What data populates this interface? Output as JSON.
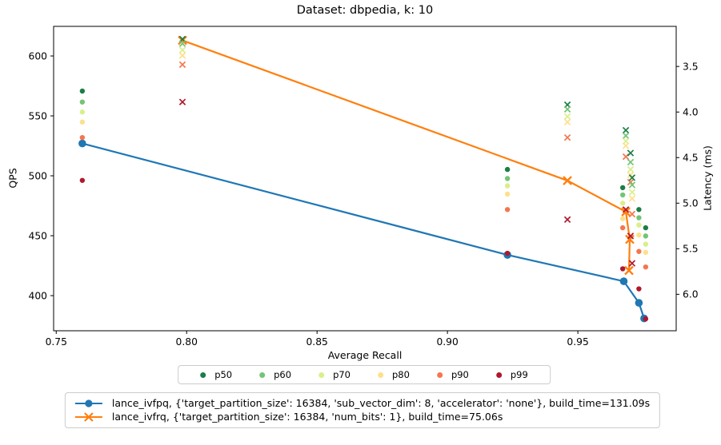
{
  "chart_data": {
    "type": "line+scatter",
    "title": "Dataset: dbpedia, k: 10",
    "xlabel": "Average Recall",
    "ylabel": "QPS",
    "ylabel_right": "Latency (ms)",
    "xlim": [
      0.749,
      0.9877
    ],
    "qps_lim": [
      370.7,
      624.7
    ],
    "lat_lim": [
      3.06,
      6.4
    ],
    "x_ticks": [
      0.75,
      0.8,
      0.85,
      0.9,
      0.95
    ],
    "qps_ticks": [
      400,
      450,
      500,
      550,
      600
    ],
    "lat_ticks": [
      3.5,
      4.0,
      4.5,
      5.0,
      5.5,
      6.0
    ],
    "grid": false,
    "legend_position": "below",
    "series": [
      {
        "name": "lance_ivfpq, {'target_partition_size': 16384, 'sub_vector_dim': 8, 'accelerator': 'none'}, build_time=131.09s",
        "color": "#1f77b4",
        "marker": "o",
        "points": [
          [
            0.76,
            527
          ],
          [
            0.923,
            434
          ],
          [
            0.9676,
            412
          ],
          [
            0.9734,
            394
          ],
          [
            0.9754,
            381
          ]
        ]
      },
      {
        "name": "lance_ivfrq, {'target_partition_size': 16384, 'num_bits': 1}, build_time=75.06s",
        "color": "#ff7f0e",
        "marker": "x",
        "points": [
          [
            0.7984,
            613
          ],
          [
            0.946,
            496
          ],
          [
            0.9684,
            470
          ],
          [
            0.9699,
            447
          ],
          [
            0.9696,
            421
          ]
        ]
      }
    ],
    "percentiles": {
      "labels": [
        "p50",
        "p60",
        "p70",
        "p80",
        "p90",
        "p99"
      ],
      "colors": [
        "#1b7e45",
        "#74c476",
        "#d9ef8b",
        "#fee08b",
        "#f4764e",
        "#b0182d"
      ],
      "clusters": [
        {
          "series": 0,
          "recall": 0.76,
          "latency_ms": [
            3.77,
            3.89,
            4.0,
            4.11,
            4.28,
            4.75
          ]
        },
        {
          "series": 0,
          "recall": 0.923,
          "latency_ms": [
            4.63,
            4.73,
            4.81,
            4.9,
            5.07,
            5.55
          ]
        },
        {
          "series": 0,
          "recall": 0.9672,
          "latency_ms": [
            4.83,
            4.91,
            5.0,
            5.17,
            5.27,
            5.72
          ]
        },
        {
          "series": 0,
          "recall": 0.9734,
          "latency_ms": [
            5.07,
            5.16,
            5.24,
            5.35,
            5.53,
            5.94
          ]
        },
        {
          "series": 0,
          "recall": 0.976,
          "latency_ms": [
            5.27,
            5.36,
            5.45,
            5.54,
            5.7,
            6.27
          ]
        },
        {
          "series": 1,
          "recall": 0.7984,
          "latency_ms": [
            3.2,
            3.25,
            3.32,
            3.38,
            3.48,
            3.89
          ]
        },
        {
          "series": 1,
          "recall": 0.946,
          "latency_ms": [
            3.92,
            3.97,
            4.05,
            4.11,
            4.28,
            5.18
          ]
        },
        {
          "series": 1,
          "recall": 0.9684,
          "latency_ms": [
            4.2,
            4.26,
            4.32,
            4.37,
            4.49,
            5.07
          ]
        },
        {
          "series": 1,
          "recall": 0.9702,
          "latency_ms": [
            4.45,
            4.55,
            4.63,
            4.69,
            4.77,
            5.36
          ]
        },
        {
          "series": 1,
          "recall": 0.9708,
          "latency_ms": [
            4.72,
            4.8,
            4.88,
            4.95,
            5.12,
            5.66
          ]
        }
      ]
    }
  }
}
